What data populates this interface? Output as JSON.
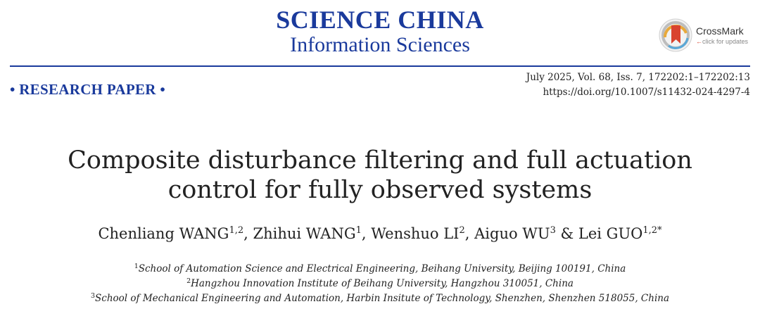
{
  "journal": {
    "name": "SCIENCE CHINA",
    "subtitle": "Information Sciences"
  },
  "crossmark": {
    "label": "CrossMark",
    "sublabel": "click for updates",
    "icon": "crossmark-icon"
  },
  "paper_type": "• RESEARCH PAPER •",
  "citation": "July 2025, Vol. 68, Iss. 7, 172202:1–172202:13",
  "doi": "https://doi.org/10.1007/s11432-024-4297-4",
  "title": {
    "line1": "Composite disturbance filtering and full actuation",
    "line2": "control for fully observed systems"
  },
  "authors": [
    {
      "name": "Chenliang WANG",
      "sup": "1,2",
      "sep": ", "
    },
    {
      "name": "Zhihui WANG",
      "sup": "1",
      "sep": ", "
    },
    {
      "name": "Wenshuo LI",
      "sup": "2",
      "sep": ", "
    },
    {
      "name": "Aiguo WU",
      "sup": "3",
      "sep": " & "
    },
    {
      "name": "Lei GUO",
      "sup": "1,2*",
      "sep": ""
    }
  ],
  "affiliations": [
    {
      "sup": "1",
      "text": "School of Automation Science and Electrical Engineering, Beihang University, Beijing 100191, China"
    },
    {
      "sup": "2",
      "text": "Hangzhou Innovation Institute of Beihang University, Hangzhou 310051, China"
    },
    {
      "sup": "3",
      "text": "School of Mechanical Engineering and Automation, Harbin Insitute of Technology, Shenzhen, Shenzhen 518055, China"
    }
  ],
  "colors": {
    "brand_blue": "#1a3a9c",
    "crossmark_red": "#d9432f"
  }
}
